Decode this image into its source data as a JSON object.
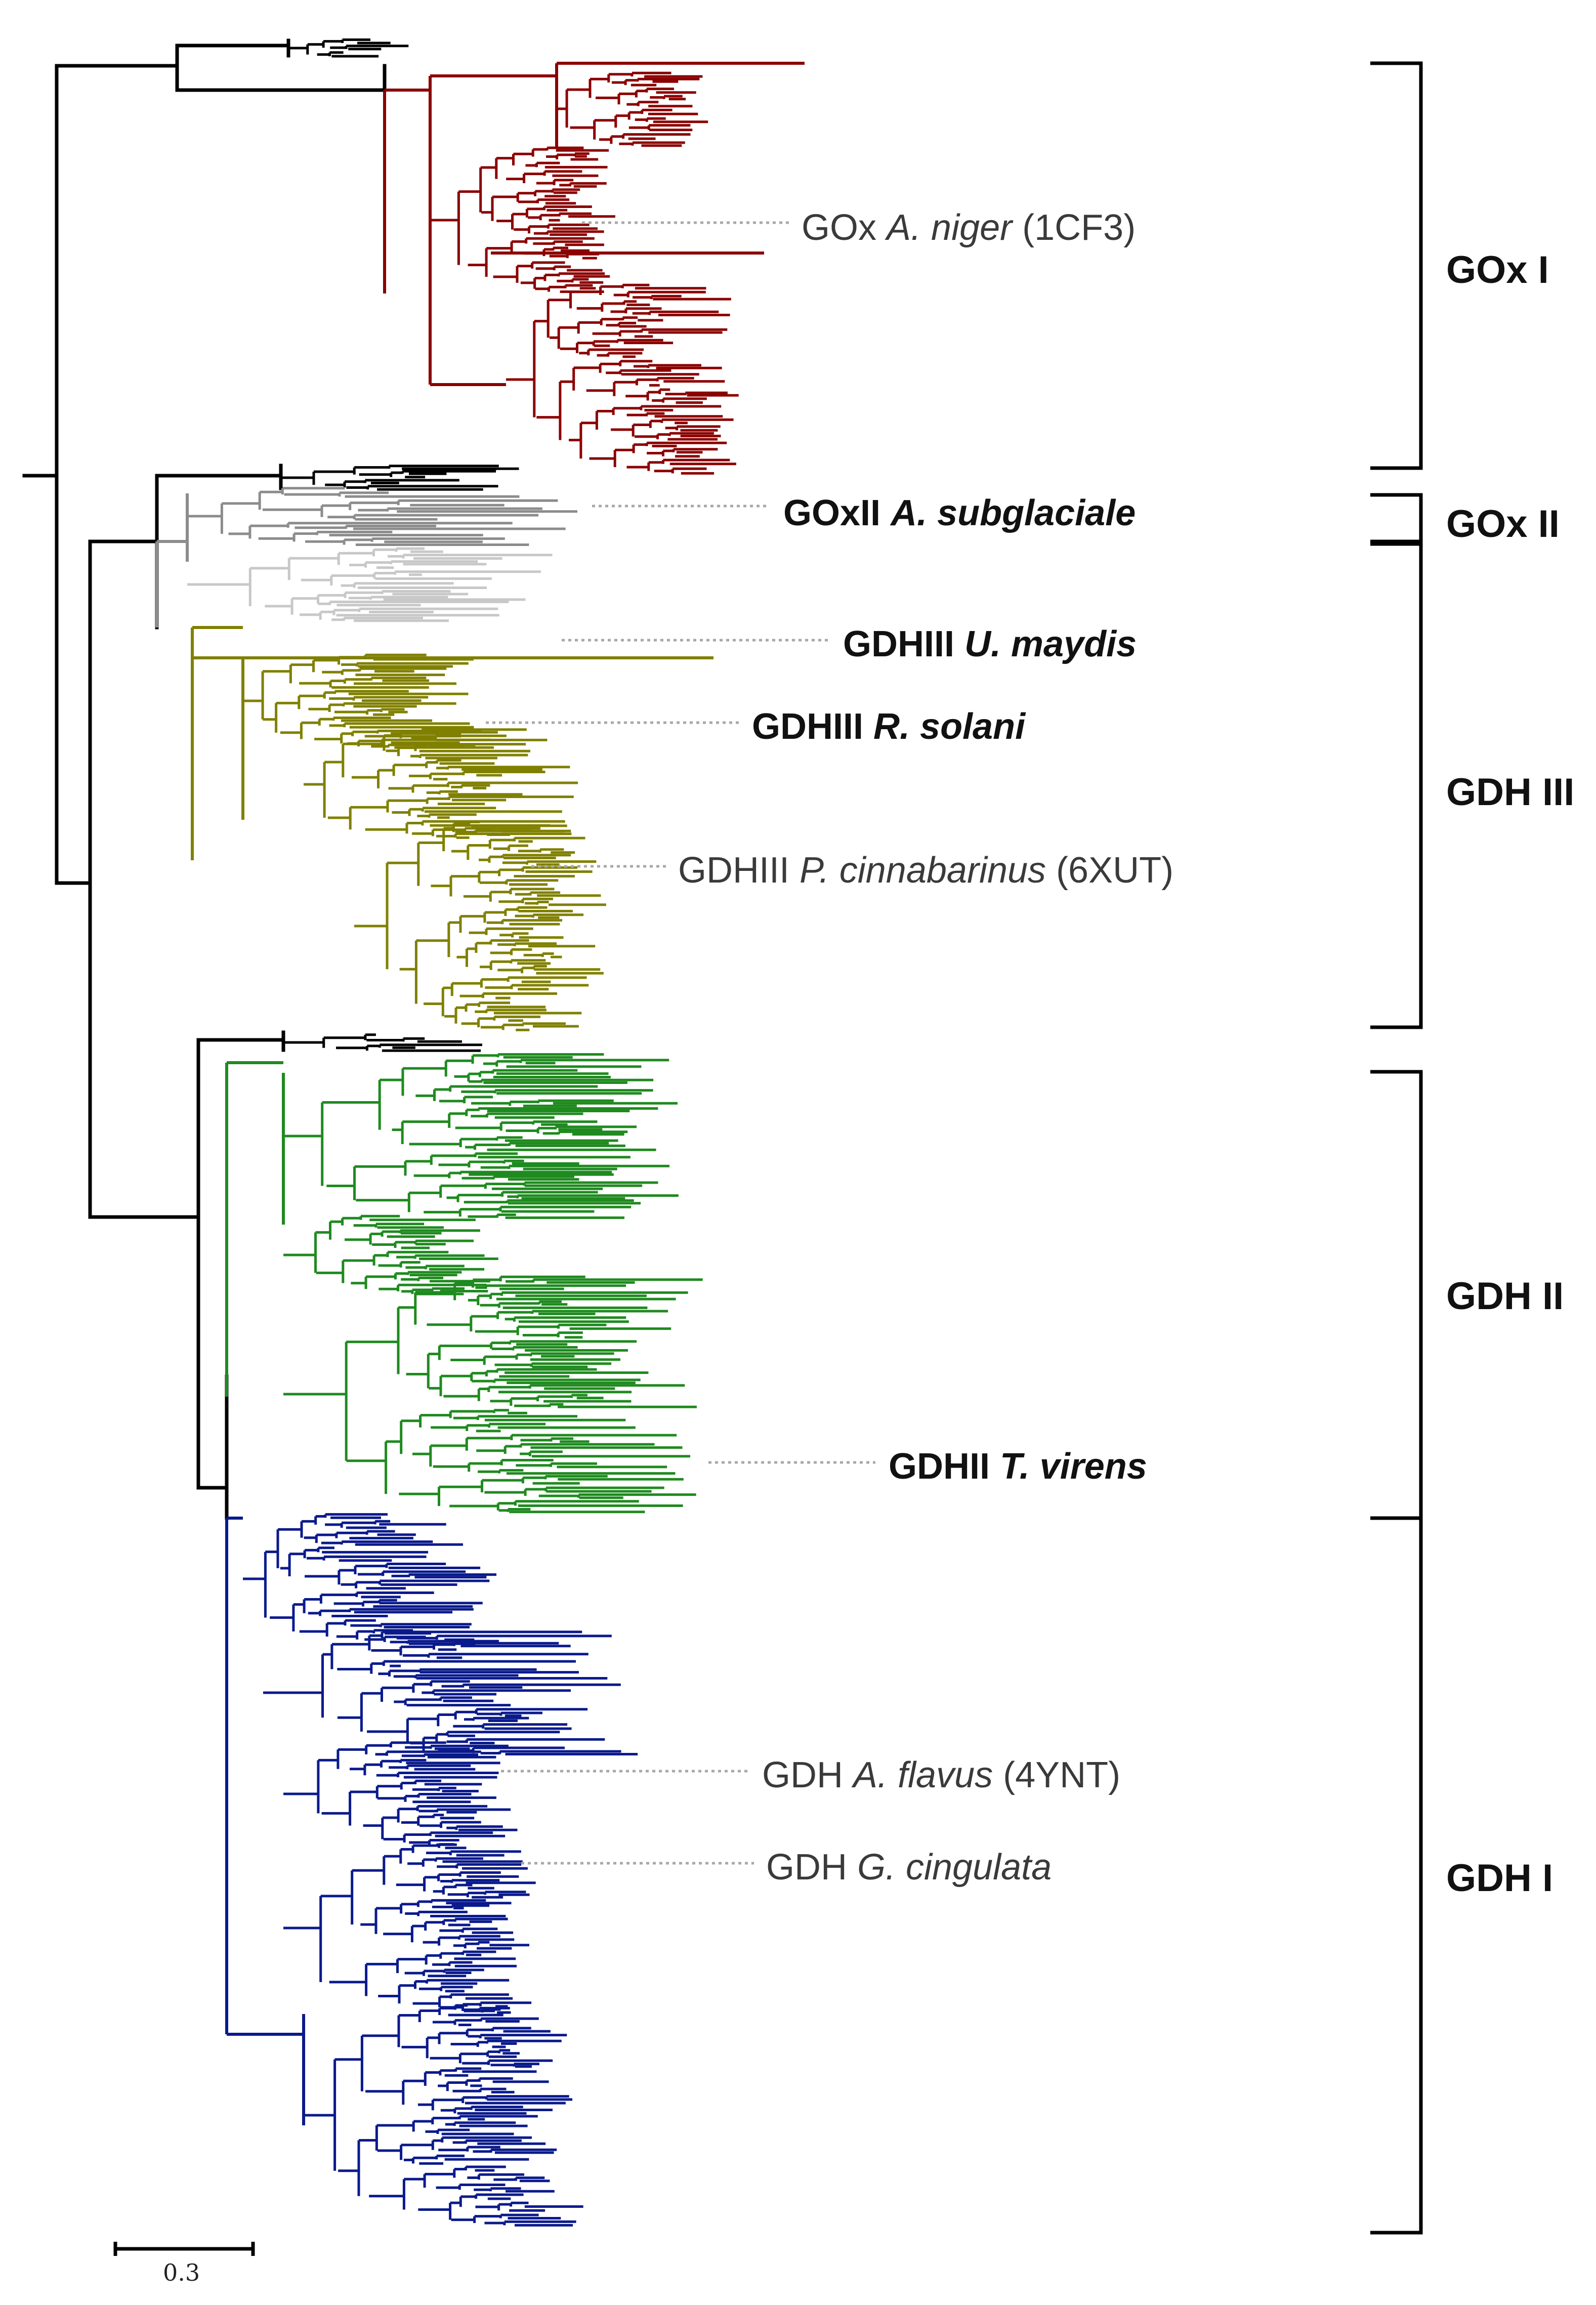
{
  "clades": [
    {
      "id": "goxI",
      "label": "GOx I",
      "color": "#8b0000"
    },
    {
      "id": "goxII",
      "label": "GOx II",
      "color": "#8c8c8c"
    },
    {
      "id": "gdhIII",
      "label": "GDH III",
      "color": "#808000"
    },
    {
      "id": "gdhII",
      "label": "GDH II",
      "color": "#1f8a1f"
    },
    {
      "id": "gdhI",
      "label": "GDH I",
      "color": "#0a1a8c"
    }
  ],
  "tip_labels": {
    "gox_niger": {
      "prefix": "GOx ",
      "species": "A. niger",
      "suffix": " (1CF3)"
    },
    "goxii_subglac": {
      "prefix": "GOxII ",
      "species": "A. subglaciale",
      "suffix": ""
    },
    "gdhiii_maydis": {
      "prefix": "GDHIII ",
      "species": "U. maydis",
      "suffix": ""
    },
    "gdhiii_solani": {
      "prefix": "GDHIII ",
      "species": "R. solani",
      "suffix": ""
    },
    "gdhiii_cinnab": {
      "prefix": "GDHIII ",
      "species": "P. cinnabarinus",
      "suffix": " (6XUT)"
    },
    "gdhii_virens": {
      "prefix": "GDHII ",
      "species": "T. virens",
      "suffix": ""
    },
    "gdh_flavus": {
      "prefix": "GDH ",
      "species": "A. flavus",
      "suffix": " (4YNT)"
    },
    "gdh_cingulata": {
      "prefix": "GDH ",
      "species": "G. cingulata",
      "suffix": ""
    }
  },
  "scale_bar": {
    "value": "0.3"
  },
  "colors": {
    "root": "#000000",
    "goxI": "#8b0000",
    "goxII": "#8c8c8c",
    "goxII_light": "#c8c8c8",
    "gdhIII": "#808000",
    "gdhII": "#1f8a1f",
    "gdhI": "#0a1a8c",
    "leader": "#a8a8a8"
  }
}
